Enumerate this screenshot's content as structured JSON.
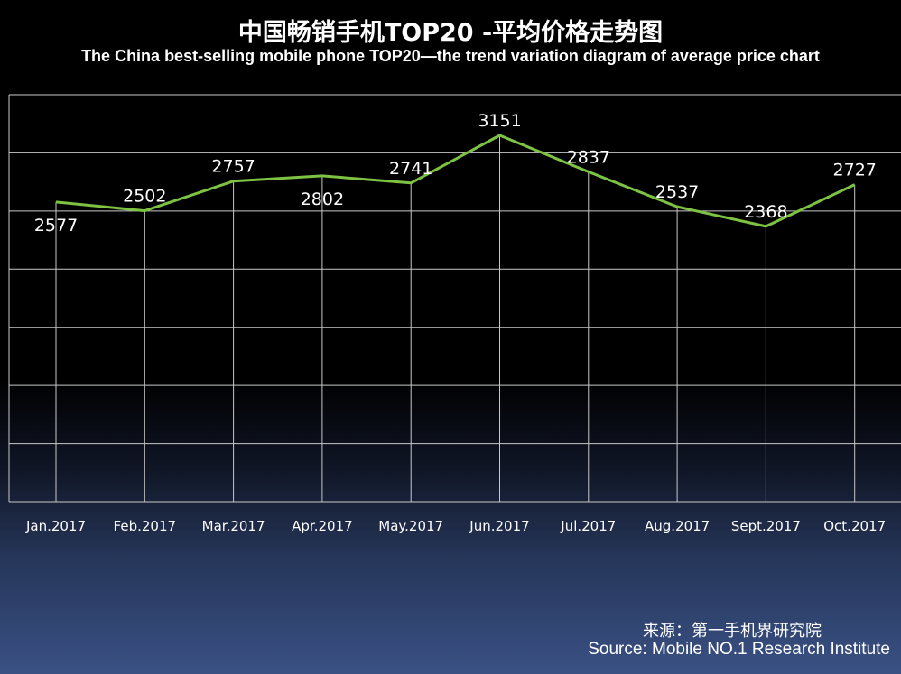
{
  "header": {
    "title_cn": "中国畅销手机TOP20 -平均价格走势图",
    "title_en": "The China best-selling mobile phone TOP20—the trend variation diagram of average price chart"
  },
  "footer": {
    "source_cn": "来源：第一手机界研究院",
    "source_en": "Source: Mobile NO.1 Research Institute"
  },
  "colors": {
    "line": "#7dc242",
    "grid": "#c8c8c8",
    "text": "#ffffff"
  },
  "chart_data": {
    "type": "line",
    "title": "中国畅销手机TOP20 -平均价格走势图",
    "subtitle": "The China best-selling mobile phone TOP20—the trend variation diagram of average price chart",
    "categories": [
      "Jan.2017",
      "Feb.2017",
      "Mar.2017",
      "Apr.2017",
      "May.2017",
      "Jun.2017",
      "Jul.2017",
      "Aug.2017",
      "Sept.2017",
      "Oct.2017"
    ],
    "series": [
      {
        "values": [
          2577,
          2502,
          2757,
          2802,
          2741,
          3151,
          2837,
          2537,
          2368,
          2727
        ]
      }
    ],
    "ylim": [
      0,
      3500
    ],
    "grid": true,
    "y_tick_labels_shown": false,
    "data_labels": true
  }
}
